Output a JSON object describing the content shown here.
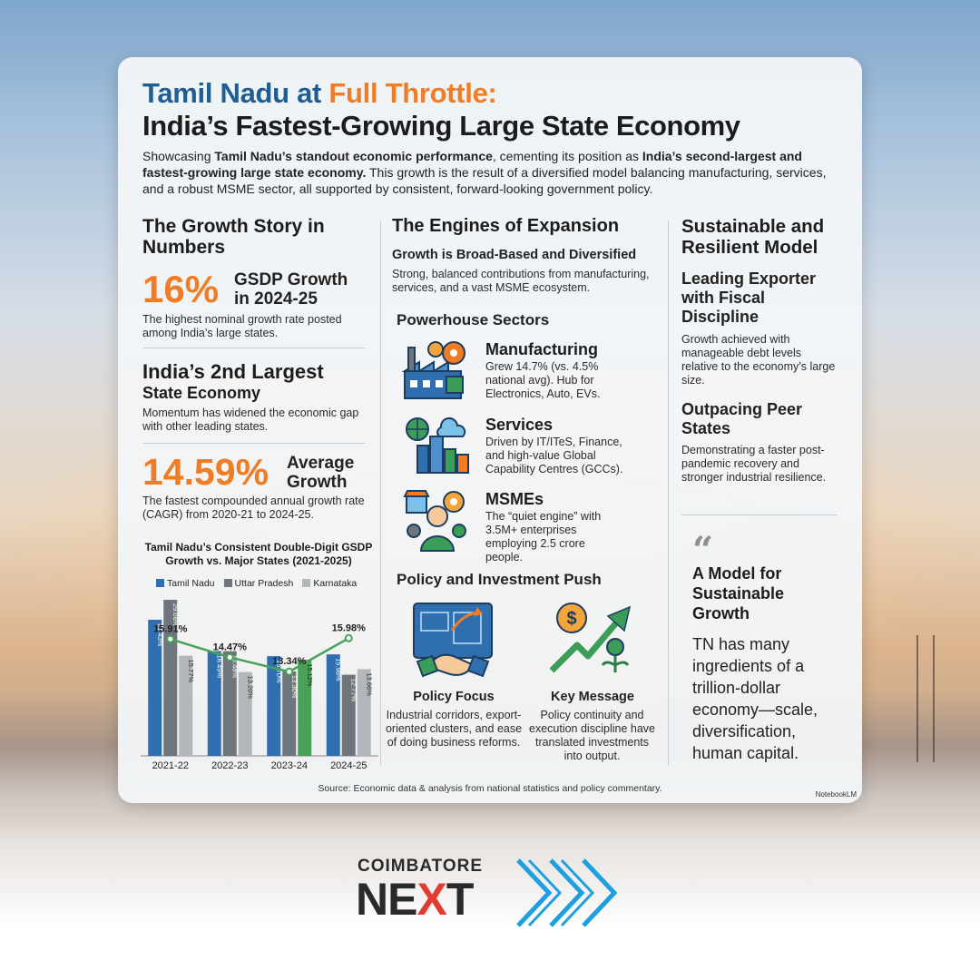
{
  "header": {
    "title_part1": "Tamil Nadu at ",
    "title_accent": "Full Throttle:",
    "title_line2": "India’s Fastest-Growing Large State Economy",
    "intro_a": "Showcasing ",
    "intro_b": "Tamil Nadu’s standout economic performance",
    "intro_c": ", cementing its position as ",
    "intro_d": "India’s second-largest and fastest-growing large state economy.",
    "intro_e": " This growth is the result of a diversified model balancing manufacturing, services, and a robust MSME sector, all supported by consistent, forward-looking government policy."
  },
  "growth_story": {
    "heading": "The Growth Story in Numbers",
    "stat1_value": "16%",
    "stat1_label": "GSDP Growth in 2024-25",
    "stat1_desc": "The highest nominal growth rate posted among India’s large states.",
    "stat2_title": "India’s 2nd Largest",
    "stat2_subtitle": "State Economy",
    "stat2_desc": "Momentum has widened the economic gap with other leading states.",
    "stat3_value": "14.59%",
    "stat3_label": "Average Growth",
    "stat3_desc": "The fastest compounded annual growth rate (CAGR) from 2020-21 to 2024-25."
  },
  "chart_data": {
    "type": "bar",
    "title": "Tamil Nadu’s Consistent Double-Digit GSDP Growth vs. Major States (2021-2025)",
    "categories": [
      "2021-22",
      "2022-23",
      "2023-24",
      "2024-25"
    ],
    "series": [
      {
        "name": "Tamil Nadu",
        "color": "#2f6fb0",
        "values": [
          21.43,
          16.49,
          15.7,
          15.98
        ]
      },
      {
        "name": "Uttar Pradesh",
        "color": "#6f757c",
        "values": [
          29.08,
          16.48,
          13.3,
          12.77
        ]
      },
      {
        "name": "Karnataka",
        "color": "#b3b6ba",
        "values": [
          15.77,
          13.2,
          15.12,
          13.66
        ]
      }
    ],
    "line": {
      "values": [
        15.91,
        14.47,
        13.34,
        15.98
      ],
      "labels": [
        "15.91%",
        "14.47%",
        "13.34%",
        "15.98%"
      ],
      "color": "#4aa15a"
    },
    "bar_labels": [
      [
        "21.43%",
        "29.08%",
        "15.77%"
      ],
      [
        "16.49%",
        "16.48%",
        "13.20%"
      ],
      [
        "15.70%",
        "13.30%",
        "15.12%"
      ],
      [
        "15.98%",
        "12.77%",
        "13.66%"
      ]
    ],
    "highlight": {
      "category_index": 2,
      "series_index": 2,
      "color": "#4aa15a"
    },
    "ylim": [
      0,
      30
    ]
  },
  "engines": {
    "heading": "The Engines of Expansion",
    "subheading": "Growth is Broad-Based and Diversified",
    "desc": "Strong, balanced contributions from manufacturing, services, and a vast MSME ecosystem.",
    "sectors_heading": "Powerhouse Sectors",
    "sectors": [
      {
        "title": "Manufacturing",
        "desc": "Grew 14.7% (vs. 4.5% national avg). Hub for Electronics, Auto, EVs.",
        "icon": "factory-icon"
      },
      {
        "title": "Services",
        "desc": "Driven by IT/ITeS, Finance, and high-value Global Capability Centres (GCCs).",
        "icon": "city-services-icon"
      },
      {
        "title": "MSMEs",
        "desc": "The “quiet engine” with 3.5M+ enterprises employing 2.5 crore people.",
        "icon": "entrepreneur-icon"
      }
    ],
    "policy_heading": "Policy and Investment Push",
    "policy": [
      {
        "title": "Policy Focus",
        "desc": "Industrial corridors, export-oriented clusters, and ease of doing business reforms.",
        "icon": "handshake-blueprint-icon"
      },
      {
        "title": "Key Message",
        "desc": "Policy continuity and execution discipline have translated investments into output.",
        "icon": "growth-arrow-icon"
      }
    ]
  },
  "sustainable": {
    "heading": "Sustainable and Resilient Model",
    "exporter_title": "Leading Exporter with Fiscal Discipline",
    "exporter_desc": "Growth achieved with manageable debt levels relative to the economy’s large size.",
    "peer_title": "Outpacing Peer States",
    "peer_desc": "Demonstrating a faster post-pandemic recovery and stronger industrial resilience.",
    "quote_mark": "“",
    "model_title": "A Model for Sustainable Growth",
    "model_body": "TN has many ingredients of a trillion-dollar economy—scale, diversification, human capital."
  },
  "footer": {
    "source": "Source: Economic data & analysis from national statistics and policy commentary.",
    "watermark": "NotebookLM"
  },
  "logo": {
    "top": "COIMBATORE",
    "main_a": "NE",
    "main_x": "X",
    "main_b": "T"
  },
  "colors": {
    "title_blue": "#1f5d93",
    "accent_orange": "#f07c25",
    "logo_red": "#e23b30",
    "chevron_blue": "#1ea0e0"
  }
}
